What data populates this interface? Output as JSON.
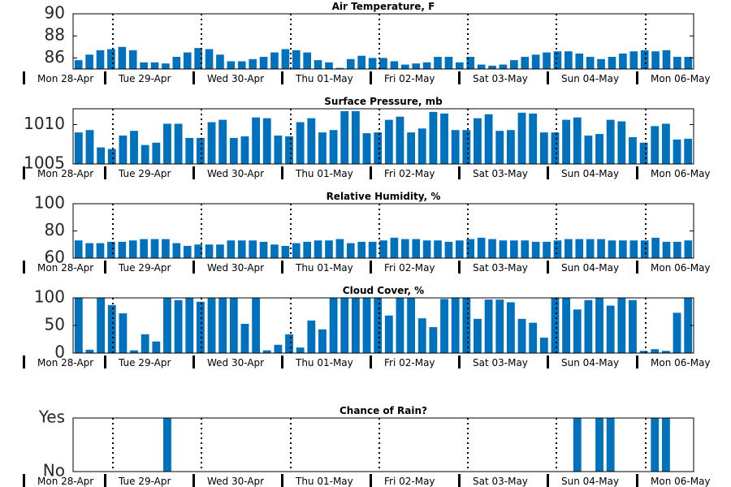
{
  "day_labels": [
    "Mon 28-Apr",
    "Tue 29-Apr",
    "Wed 30-Apr",
    "Thu 01-May",
    "Fri 02-May",
    "Sat 03-May",
    "Sun 04-May",
    "Mon 06-May"
  ],
  "bar_color": "#0072bd",
  "chart_data": [
    {
      "type": "bar",
      "title": "Air Temperature, F",
      "ylim": [
        85,
        90
      ],
      "yticks": [
        "86",
        "88",
        "90"
      ],
      "ytick_values": [
        86,
        88,
        90
      ],
      "values": [
        85.8,
        86.3,
        86.7,
        86.8,
        87.0,
        86.7,
        85.6,
        85.6,
        85.5,
        86.1,
        86.5,
        86.9,
        86.8,
        86.3,
        85.7,
        85.7,
        85.9,
        86.1,
        86.5,
        86.8,
        86.7,
        86.5,
        85.8,
        85.6,
        85.1,
        85.9,
        86.2,
        86.0,
        86.0,
        85.7,
        85.4,
        85.5,
        85.6,
        86.1,
        86.1,
        85.6,
        86.1,
        85.4,
        85.3,
        85.4,
        85.8,
        86.1,
        86.3,
        86.5,
        86.6,
        86.6,
        86.4,
        86.1,
        85.9,
        86.1,
        86.4,
        86.6,
        86.7,
        86.6,
        86.7,
        86.1,
        86.1
      ]
    },
    {
      "type": "bar",
      "title": "Surface Pressure, mb",
      "ylim": [
        1005,
        1012
      ],
      "yticks": [
        "1005",
        "1010"
      ],
      "ytick_values": [
        1005,
        1010
      ],
      "values": [
        1009,
        1009.3,
        1007.1,
        1006.9,
        1008.6,
        1009.2,
        1007.4,
        1007.7,
        1010.1,
        1010.1,
        1008.3,
        1008.3,
        1010.3,
        1010.6,
        1008.3,
        1008.5,
        1010.9,
        1010.8,
        1008.6,
        1008.5,
        1010.3,
        1010.8,
        1009,
        1009.3,
        1011.7,
        1011.7,
        1008.9,
        1009,
        1010.6,
        1011,
        1009,
        1009.5,
        1011.6,
        1011.4,
        1009.3,
        1009.3,
        1010.8,
        1011.3,
        1009.2,
        1009.3,
        1011.5,
        1011.4,
        1009,
        1009,
        1010.6,
        1010.9,
        1008.6,
        1008.8,
        1010.6,
        1010.4,
        1008.4,
        1007.7,
        1009.8,
        1010.1,
        1008.1,
        1008.2
      ]
    },
    {
      "type": "bar",
      "title": "Relative Humidity, %",
      "ylim": [
        60,
        100
      ],
      "yticks": [
        "60",
        "80",
        "100"
      ],
      "ytick_values": [
        60,
        80,
        100
      ],
      "values": [
        73,
        71,
        71,
        72,
        72,
        73,
        74,
        74,
        74,
        71,
        69,
        70,
        70,
        70,
        73,
        73,
        73,
        72,
        70,
        69,
        71,
        72,
        73,
        73,
        74,
        71,
        72,
        72,
        73,
        75,
        74,
        74,
        73,
        73,
        72,
        73,
        74,
        75,
        74,
        73,
        73,
        73,
        72,
        72,
        73,
        74,
        74,
        74,
        74,
        73,
        73,
        73,
        73,
        75,
        72,
        72,
        73
      ]
    },
    {
      "type": "bar",
      "title": "Cloud Cover, %",
      "ylim": [
        0,
        100
      ],
      "yticks": [
        "0",
        "50",
        "100"
      ],
      "ytick_values": [
        0,
        50,
        100
      ],
      "values": [
        100,
        6,
        100,
        87,
        72,
        5,
        34,
        21,
        100,
        96,
        100,
        93,
        100,
        100,
        100,
        53,
        100,
        5,
        15,
        34,
        10,
        59,
        43,
        100,
        100,
        100,
        100,
        100,
        68,
        100,
        100,
        63,
        47,
        98,
        100,
        100,
        62,
        97,
        97,
        92,
        62,
        55,
        28,
        100,
        100,
        79,
        96,
        100,
        86,
        100,
        96,
        4,
        7,
        4,
        73,
        100
      ]
    },
    {
      "type": "bar",
      "title": "Chance of Rain?",
      "ylim": [
        0,
        1
      ],
      "yticks": [
        "No",
        "Yes"
      ],
      "ytick_values": [
        0,
        1
      ],
      "values": [
        0,
        0,
        0,
        0,
        0,
        0,
        0,
        0,
        1,
        0,
        0,
        0,
        0,
        0,
        0,
        0,
        0,
        0,
        0,
        0,
        0,
        0,
        0,
        0,
        0,
        0,
        0,
        0,
        0,
        0,
        0,
        0,
        0,
        0,
        0,
        0,
        0,
        0,
        0,
        0,
        0,
        0,
        0,
        0,
        0,
        1,
        0,
        1,
        1,
        0,
        0,
        0,
        1,
        1,
        0,
        0
      ]
    }
  ]
}
